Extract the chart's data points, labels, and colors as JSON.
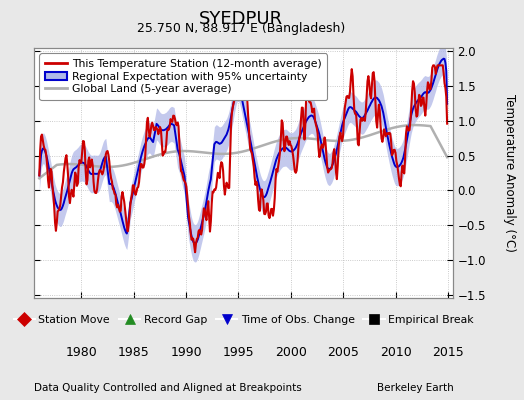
{
  "title": "SYEDPUR",
  "subtitle": "25.750 N, 88.917 E (Bangladesh)",
  "ylabel": "Temperature Anomaly (°C)",
  "footer_left": "Data Quality Controlled and Aligned at Breakpoints",
  "footer_right": "Berkeley Earth",
  "xlim": [
    1975.5,
    2015.5
  ],
  "ylim": [
    -1.55,
    2.05
  ],
  "yticks": [
    -1.5,
    -1.0,
    -0.5,
    0.0,
    0.5,
    1.0,
    1.5,
    2.0
  ],
  "xticks": [
    1980,
    1985,
    1990,
    1995,
    2000,
    2005,
    2010,
    2015
  ],
  "bg_color": "#e8e8e8",
  "plot_bg_color": "#ffffff",
  "station_color": "#cc0000",
  "regional_color": "#0000cc",
  "regional_fill_color": "#b0b8e8",
  "global_color": "#b0b0b0",
  "legend_items": [
    {
      "label": "This Temperature Station (12-month average)",
      "color": "#cc0000"
    },
    {
      "label": "Regional Expectation with 95% uncertainty",
      "color": "#0000cc"
    },
    {
      "label": "Global Land (5-year average)",
      "color": "#b0b0b0"
    }
  ],
  "bottom_legend": [
    {
      "label": "Station Move",
      "color": "#cc0000",
      "marker": "D"
    },
    {
      "label": "Record Gap",
      "color": "#228B22",
      "marker": "^"
    },
    {
      "label": "Time of Obs. Change",
      "color": "#0000cc",
      "marker": "v"
    },
    {
      "label": "Empirical Break",
      "color": "#000000",
      "marker": "s"
    }
  ]
}
